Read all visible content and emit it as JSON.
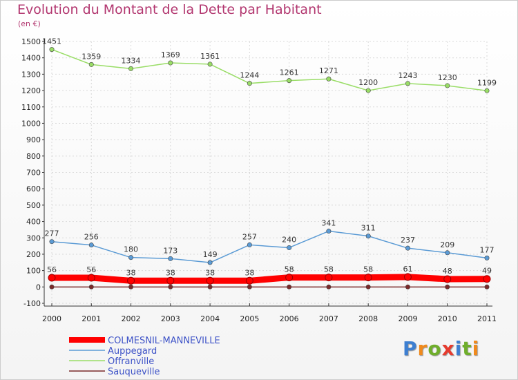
{
  "title": "Evolution du Montant de la Dette par Habitant",
  "subtitle": "(en €)",
  "logo_text": "Proxiti",
  "colors": {
    "title": "#b2366f",
    "axis": "#333333",
    "grid": "#d9d9d9",
    "legend_text": "#3d52c7"
  },
  "chart_data": {
    "type": "line",
    "x": [
      "2000",
      "2001",
      "2002",
      "2003",
      "2004",
      "2005",
      "2006",
      "2007",
      "2008",
      "2009",
      "2010",
      "2011"
    ],
    "ylim": [
      -100,
      1500
    ],
    "yticks": [
      -100,
      0,
      100,
      200,
      300,
      400,
      500,
      600,
      700,
      800,
      900,
      1000,
      1100,
      1200,
      1300,
      1400,
      1500
    ],
    "grid": true,
    "legend_position": "bottom-left",
    "series": [
      {
        "name": "COLMESNIL-MANNEVILLE",
        "color": "#ff0000",
        "emphasis": true,
        "values": [
          56,
          56,
          38,
          38,
          38,
          38,
          58,
          58,
          58,
          61,
          48,
          49
        ],
        "labels": [
          "56",
          "56",
          "38",
          "38",
          "38",
          "38",
          "58",
          "58",
          "58",
          "61",
          "48",
          "49"
        ]
      },
      {
        "name": "Auppegard",
        "color": "#5b9bd5",
        "emphasis": false,
        "values": [
          277,
          256,
          180,
          173,
          149,
          257,
          240,
          341,
          311,
          237,
          209,
          177
        ],
        "labels": [
          "277",
          "256",
          "180",
          "173",
          "149",
          "257",
          "240",
          "341",
          "311",
          "237",
          "209",
          "177"
        ]
      },
      {
        "name": "Offranville",
        "color": "#99dd66",
        "emphasis": false,
        "values": [
          1451,
          1359,
          1334,
          1369,
          1361,
          1244,
          1261,
          1271,
          1200,
          1243,
          1230,
          1199
        ],
        "labels": [
          "1451",
          "1359",
          "1334",
          "1369",
          "1361",
          "1244",
          "1261",
          "1271",
          "1200",
          "1243",
          "1230",
          "1199"
        ]
      },
      {
        "name": "Sauqueville",
        "color": "#7a2a2a",
        "emphasis": false,
        "values": [
          0,
          0,
          0,
          0,
          0,
          0,
          0,
          0,
          0,
          0,
          0,
          0
        ],
        "labels": []
      }
    ]
  }
}
